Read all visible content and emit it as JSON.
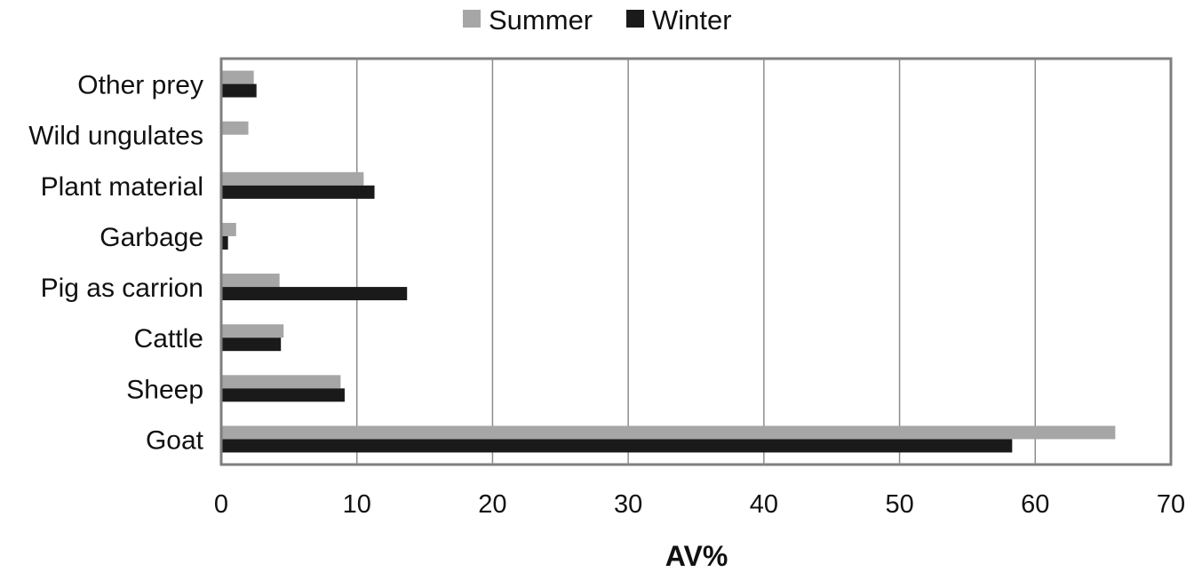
{
  "chart_data": {
    "type": "bar",
    "orientation": "horizontal",
    "categories": [
      "Goat",
      "Sheep",
      "Cattle",
      "Pig as carrion",
      "Garbage",
      "Plant material",
      "Wild ungulates",
      "Other prey"
    ],
    "series": [
      {
        "name": "Summer",
        "color": "#a6a6a6",
        "values": [
          65.9,
          8.8,
          4.6,
          4.3,
          1.1,
          10.5,
          2.0,
          2.4
        ]
      },
      {
        "name": "Winter",
        "color": "#1a1a1a",
        "values": [
          58.3,
          9.1,
          4.4,
          13.7,
          0.5,
          11.3,
          0,
          2.6
        ]
      }
    ],
    "xlabel": "AV%",
    "ylabel": "",
    "xlim": [
      0,
      70
    ],
    "xticks": [
      "0",
      "10",
      "20",
      "30",
      "40",
      "50",
      "60",
      "70"
    ],
    "grid": "vertical",
    "legend_position": "top-center"
  }
}
